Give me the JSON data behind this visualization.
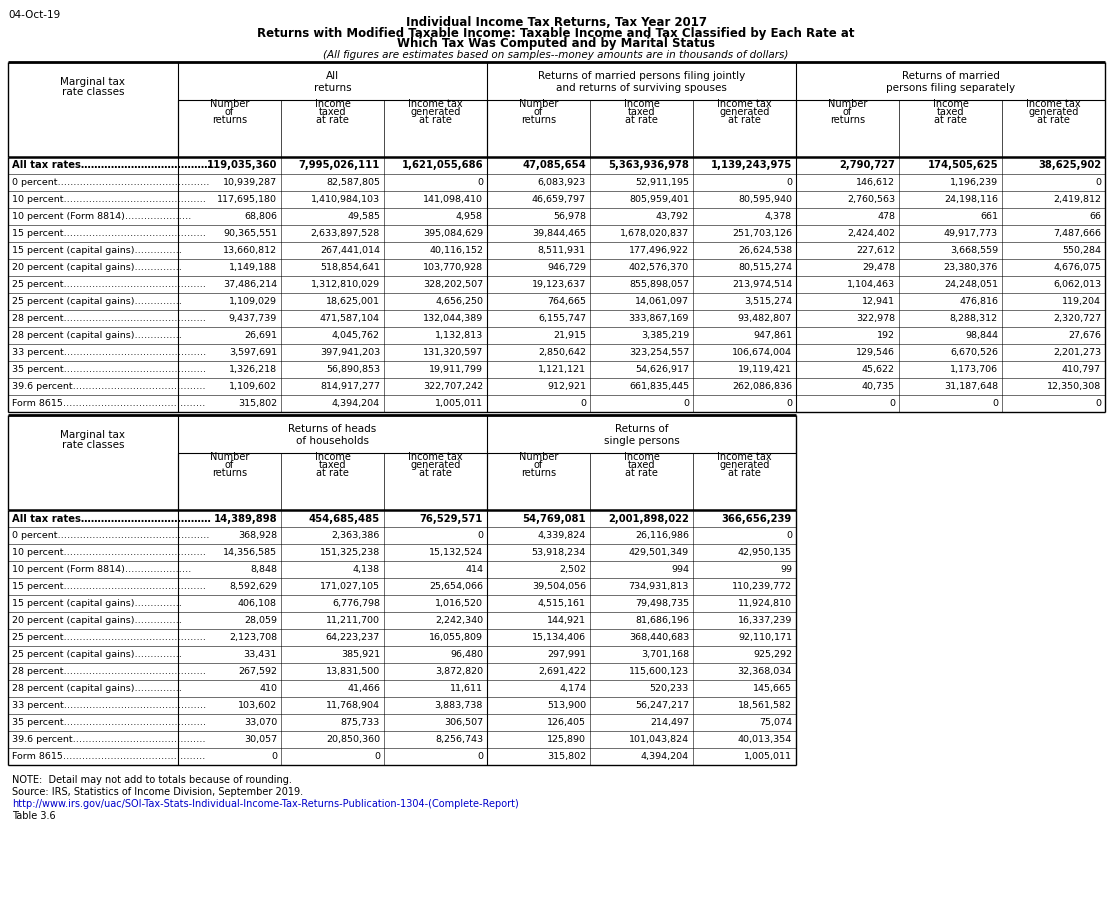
{
  "date_label": "04-Oct-19",
  "title_lines": [
    "Individual Income Tax Returns, Tax Year 2017",
    "Returns with Modified Taxable Income: Taxable Income and Tax Classified by Each Rate at",
    "Which Tax Was Computed and by Marital Status",
    "(All figures are estimates based on samples--money amounts are in thousands of dollars)"
  ],
  "top_header_groups": [
    {
      "label": "All\nreturns",
      "span": 3
    },
    {
      "label": "Returns of married persons filing jointly\nand returns of surviving spouses",
      "span": 3
    },
    {
      "label": "Returns of married\npersons filing separately",
      "span": 3
    }
  ],
  "col_subheaders": [
    "Number\nof\nreturns",
    "Income\ntaxed\nat rate",
    "Income tax\ngenerated\nat rate",
    "Number\nof\nreturns",
    "Income\ntaxed\nat rate",
    "Income tax\ngenerated\nat rate",
    "Number\nof\nreturns",
    "Income\ntaxed\nat rate",
    "Income tax\ngenerated\nat rate"
  ],
  "top_rows": [
    [
      "All tax rates…………………………………",
      "119,035,360",
      "7,995,026,111",
      "1,621,055,686",
      "47,085,654",
      "5,363,936,978",
      "1,139,243,975",
      "2,790,727",
      "174,505,625",
      "38,625,902"
    ],
    [
      "0 percent…………………………………………",
      "10,939,287",
      "82,587,805",
      "0",
      "6,083,923",
      "52,911,195",
      "0",
      "146,612",
      "1,196,239",
      "0"
    ],
    [
      "10 percent………………………………………",
      "117,695,180",
      "1,410,984,103",
      "141,098,410",
      "46,659,797",
      "805,959,401",
      "80,595,940",
      "2,760,563",
      "24,198,116",
      "2,419,812"
    ],
    [
      "10 percent (Form 8814)…………………",
      "68,806",
      "49,585",
      "4,958",
      "56,978",
      "43,792",
      "4,378",
      "478",
      "661",
      "66"
    ],
    [
      "15 percent………………………………………",
      "90,365,551",
      "2,633,897,528",
      "395,084,629",
      "39,844,465",
      "1,678,020,837",
      "251,703,126",
      "2,424,402",
      "49,917,773",
      "7,487,666"
    ],
    [
      "15 percent (capital gains)……………",
      "13,660,812",
      "267,441,014",
      "40,116,152",
      "8,511,931",
      "177,496,922",
      "26,624,538",
      "227,612",
      "3,668,559",
      "550,284"
    ],
    [
      "20 percent (capital gains)……………",
      "1,149,188",
      "518,854,641",
      "103,770,928",
      "946,729",
      "402,576,370",
      "80,515,274",
      "29,478",
      "23,380,376",
      "4,676,075"
    ],
    [
      "25 percent………………………………………",
      "37,486,214",
      "1,312,810,029",
      "328,202,507",
      "19,123,637",
      "855,898,057",
      "213,974,514",
      "1,104,463",
      "24,248,051",
      "6,062,013"
    ],
    [
      "25 percent (capital gains)……………",
      "1,109,029",
      "18,625,001",
      "4,656,250",
      "764,665",
      "14,061,097",
      "3,515,274",
      "12,941",
      "476,816",
      "119,204"
    ],
    [
      "28 percent………………………………………",
      "9,437,739",
      "471,587,104",
      "132,044,389",
      "6,155,747",
      "333,867,169",
      "93,482,807",
      "322,978",
      "8,288,312",
      "2,320,727"
    ],
    [
      "28 percent (capital gains)……………",
      "26,691",
      "4,045,762",
      "1,132,813",
      "21,915",
      "3,385,219",
      "947,861",
      "192",
      "98,844",
      "27,676"
    ],
    [
      "33 percent………………………………………",
      "3,597,691",
      "397,941,203",
      "131,320,597",
      "2,850,642",
      "323,254,557",
      "106,674,004",
      "129,546",
      "6,670,526",
      "2,201,273"
    ],
    [
      "35 percent………………………………………",
      "1,326,218",
      "56,890,853",
      "19,911,799",
      "1,121,121",
      "54,626,917",
      "19,119,421",
      "45,622",
      "1,173,706",
      "410,797"
    ],
    [
      "39.6 percent……………………………………",
      "1,109,602",
      "814,917,277",
      "322,707,242",
      "912,921",
      "661,835,445",
      "262,086,836",
      "40,735",
      "31,187,648",
      "12,350,308"
    ],
    [
      "Form 8615………………………………………",
      "315,802",
      "4,394,204",
      "1,005,011",
      "0",
      "0",
      "0",
      "0",
      "0",
      "0"
    ]
  ],
  "bottom_header_groups": [
    {
      "label": "Returns of heads\nof households",
      "span": 3
    },
    {
      "label": "Returns of\nsingle persons",
      "span": 3
    }
  ],
  "bottom_col_subheaders": [
    "Number\nof\nreturns",
    "Income\ntaxed\nat rate",
    "Income tax\ngenerated\nat rate",
    "Number\nof\nreturns",
    "Income\ntaxed\nat rate",
    "Income tax\ngenerated\nat rate"
  ],
  "bottom_rows": [
    [
      "All tax rates…………………………………",
      "14,389,898",
      "454,685,485",
      "76,529,571",
      "54,769,081",
      "2,001,898,022",
      "366,656,239"
    ],
    [
      "0 percent…………………………………………",
      "368,928",
      "2,363,386",
      "0",
      "4,339,824",
      "26,116,986",
      "0"
    ],
    [
      "10 percent………………………………………",
      "14,356,585",
      "151,325,238",
      "15,132,524",
      "53,918,234",
      "429,501,349",
      "42,950,135"
    ],
    [
      "10 percent (Form 8814)…………………",
      "8,848",
      "4,138",
      "414",
      "2,502",
      "994",
      "99"
    ],
    [
      "15 percent………………………………………",
      "8,592,629",
      "171,027,105",
      "25,654,066",
      "39,504,056",
      "734,931,813",
      "110,239,772"
    ],
    [
      "15 percent (capital gains)……………",
      "406,108",
      "6,776,798",
      "1,016,520",
      "4,515,161",
      "79,498,735",
      "11,924,810"
    ],
    [
      "20 percent (capital gains)……………",
      "28,059",
      "11,211,700",
      "2,242,340",
      "144,921",
      "81,686,196",
      "16,337,239"
    ],
    [
      "25 percent………………………………………",
      "2,123,708",
      "64,223,237",
      "16,055,809",
      "15,134,406",
      "368,440,683",
      "92,110,171"
    ],
    [
      "25 percent (capital gains)……………",
      "33,431",
      "385,921",
      "96,480",
      "297,991",
      "3,701,168",
      "925,292"
    ],
    [
      "28 percent………………………………………",
      "267,592",
      "13,831,500",
      "3,872,820",
      "2,691,422",
      "115,600,123",
      "32,368,034"
    ],
    [
      "28 percent (capital gains)……………",
      "410",
      "41,466",
      "11,611",
      "4,174",
      "520,233",
      "145,665"
    ],
    [
      "33 percent………………………………………",
      "103,602",
      "11,768,904",
      "3,883,738",
      "513,900",
      "56,247,217",
      "18,561,582"
    ],
    [
      "35 percent………………………………………",
      "33,070",
      "875,733",
      "306,507",
      "126,405",
      "214,497",
      "75,074"
    ],
    [
      "39.6 percent……………………………………",
      "30,057",
      "20,850,360",
      "8,256,743",
      "125,890",
      "101,043,824",
      "40,013,354"
    ],
    [
      "Form 8615………………………………………",
      "0",
      "0",
      "0",
      "315,802",
      "4,394,204",
      "1,005,011"
    ]
  ],
  "footer_lines": [
    "NOTE:  Detail may not add to totals because of rounding.",
    "Source: IRS, Statistics of Income Division, September 2019.",
    "http://www.irs.gov/uac/SOI-Tax-Stats-Individual-Income-Tax-Returns-Publication-1304-(Complete-Report)",
    "Table 3.6"
  ],
  "bold_color": "#000000",
  "normal_color": "#000000",
  "header_text_color": "#000000",
  "link_color": "#0000CC",
  "background_color": "#FFFFFF"
}
